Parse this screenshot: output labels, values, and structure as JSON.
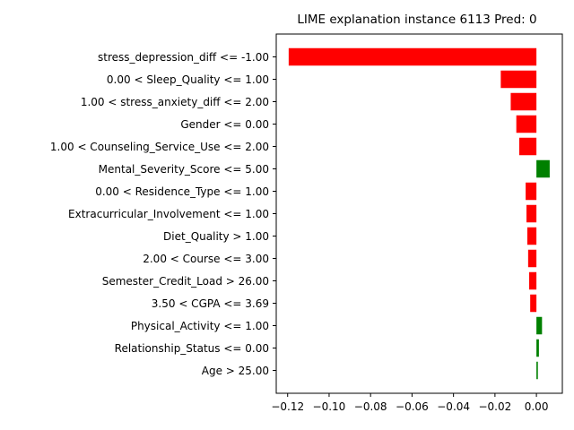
{
  "chart_data": {
    "type": "bar",
    "orientation": "horizontal",
    "title": "LIME explanation instance 6113 Pred: 0",
    "xlabel": "",
    "ylabel": "",
    "xlim": [
      -0.1255,
      0.0125
    ],
    "xticks": [
      -0.12,
      -0.1,
      -0.08,
      -0.06,
      -0.04,
      -0.02,
      0.0
    ],
    "xtick_labels": [
      "−0.12",
      "−0.10",
      "−0.08",
      "−0.06",
      "−0.04",
      "−0.02",
      "0.00"
    ],
    "grid": false,
    "colors": {
      "negative": "#ff0000",
      "positive": "#008000"
    },
    "categories": [
      "stress_depression_diff <= -1.00",
      "0.00 < Sleep_Quality <= 1.00",
      "1.00 < stress_anxiety_diff <= 2.00",
      "Gender <= 0.00",
      "1.00 < Counseling_Service_Use <= 2.00",
      "Mental_Severity_Score <= 5.00",
      "0.00 < Residence_Type <= 1.00",
      "Extracurricular_Involvement <= 1.00",
      "Diet_Quality > 1.00",
      "2.00 < Course <= 3.00",
      "Semester_Credit_Load > 26.00",
      "3.50 < CGPA <= 3.69",
      "Physical_Activity <= 1.00",
      "Relationship_Status <= 0.00",
      "Age > 25.00"
    ],
    "values": [
      -0.1195,
      -0.0172,
      -0.0124,
      -0.0097,
      -0.0083,
      0.0064,
      -0.0052,
      -0.0048,
      -0.0044,
      -0.004,
      -0.0035,
      -0.003,
      0.0027,
      0.0012,
      0.0007
    ]
  }
}
